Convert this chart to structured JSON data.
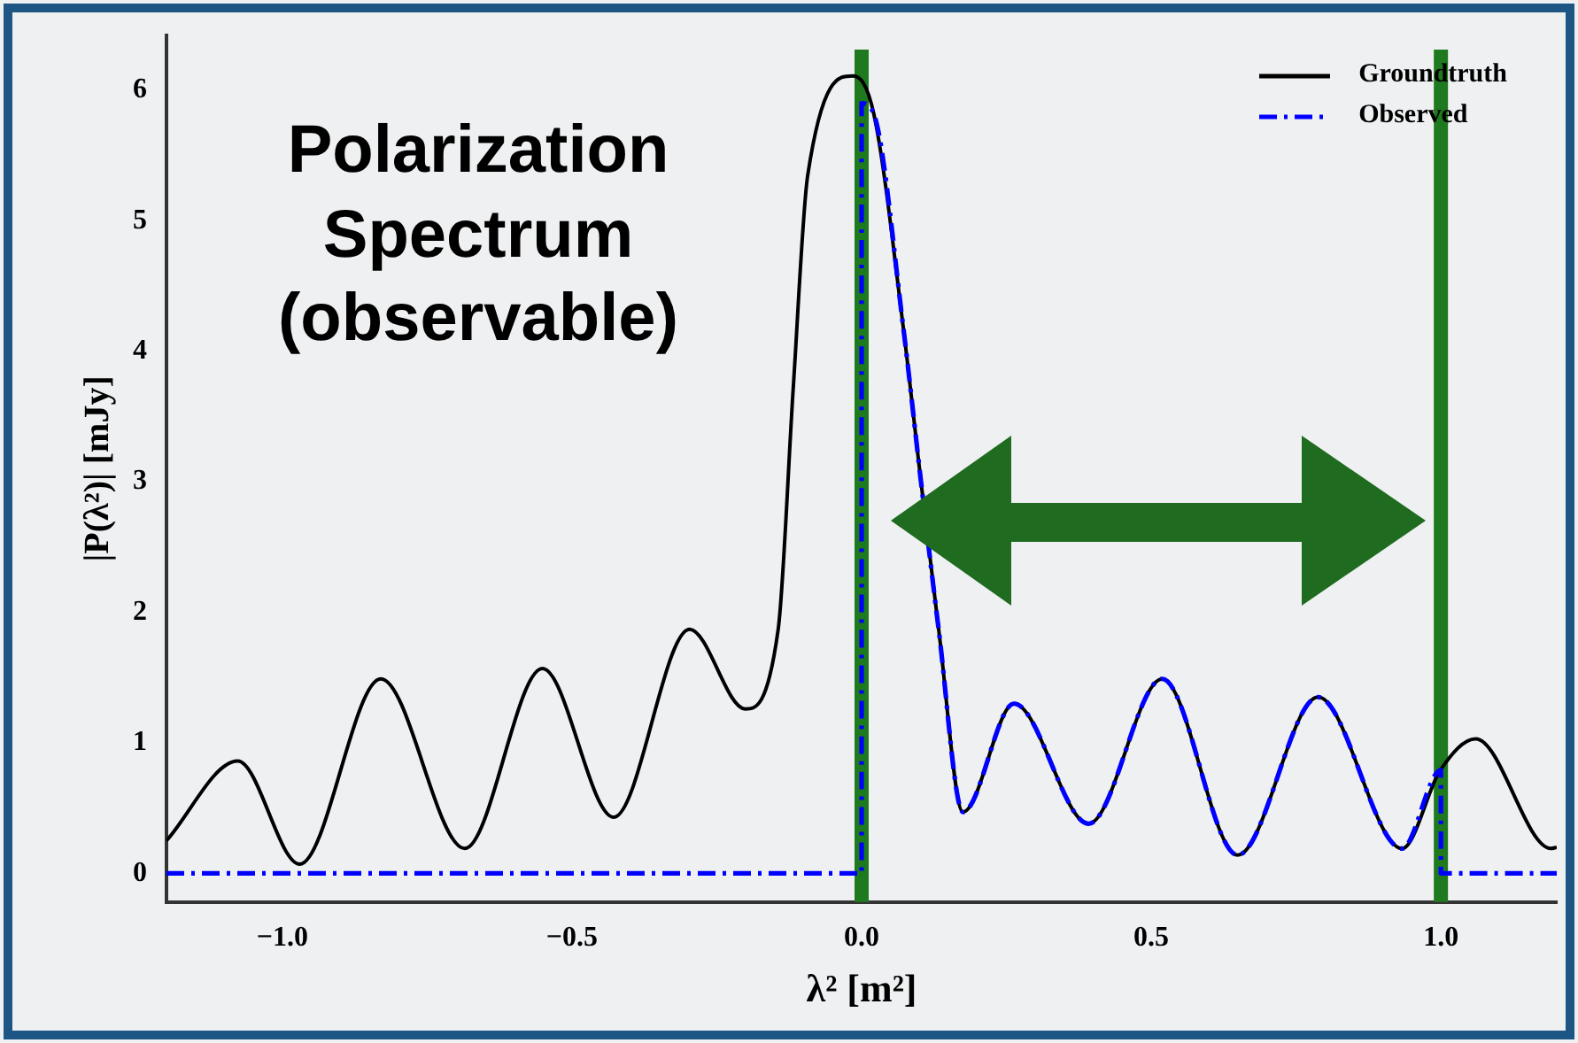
{
  "chart_data": {
    "type": "line",
    "xlabel": "λ² [m²]",
    "ylabel": "|P(λ²)| [mJy]",
    "annotations": [
      "Polarization Spectrum (observable)"
    ],
    "xlim": [
      -1.2,
      1.2
    ],
    "ylim": [
      -0.22,
      6.42
    ],
    "xticks": [
      {
        "value": -1,
        "label": "−1.0"
      },
      {
        "value": -0.5,
        "label": "−0.5"
      },
      {
        "value": 0,
        "label": "0.0"
      },
      {
        "value": 0.5,
        "label": "0.5"
      },
      {
        "value": 1,
        "label": "1.0"
      }
    ],
    "yticks": [
      0,
      1,
      2,
      3,
      4,
      5,
      6
    ],
    "grid": false,
    "legend": "top right",
    "marker": "none",
    "ref_lines": [
      {
        "axis": "x",
        "value": 0,
        "color": "#1f7a1f"
      },
      {
        "axis": "x",
        "value": 1,
        "color": "#1f7a1f"
      }
    ],
    "series": [
      {
        "name": "Groundtruth",
        "color": "#000000",
        "line_style": "solid",
        "x": [
          -1.2,
          -1.077,
          -0.97,
          -0.83,
          -0.685,
          -0.551,
          -0.428,
          -0.297,
          -0.201,
          -0.144,
          -0.118,
          -0.093,
          -0.015,
          0.021,
          0.072,
          0.102,
          0.133,
          0.175,
          0.263,
          0.392,
          0.519,
          0.649,
          0.788,
          0.933,
          0.999,
          1.06,
          1.19,
          1.2
        ],
        "values": [
          0.25,
          0.86,
          0.07,
          1.49,
          0.19,
          1.57,
          0.43,
          1.87,
          1.26,
          1.87,
          3.72,
          5.35,
          6.11,
          5.82,
          4.18,
          3.02,
          1.87,
          0.47,
          1.3,
          0.38,
          1.49,
          0.14,
          1.35,
          0.19,
          0.79,
          1.03,
          0.19,
          0.2
        ]
      },
      {
        "name": "Observed",
        "color": "#0000ff",
        "line_style": "dashed",
        "x": [
          -1.2,
          0,
          0,
          0.021,
          0.072,
          0.102,
          0.133,
          0.175,
          0.263,
          0.392,
          0.519,
          0.649,
          0.788,
          0.933,
          1,
          1,
          1.2
        ],
        "values": [
          0,
          0,
          5.9,
          5.82,
          4.18,
          3.02,
          1.87,
          0.47,
          1.3,
          0.38,
          1.49,
          0.14,
          1.35,
          0.19,
          0.79,
          0,
          0
        ]
      }
    ]
  }
}
